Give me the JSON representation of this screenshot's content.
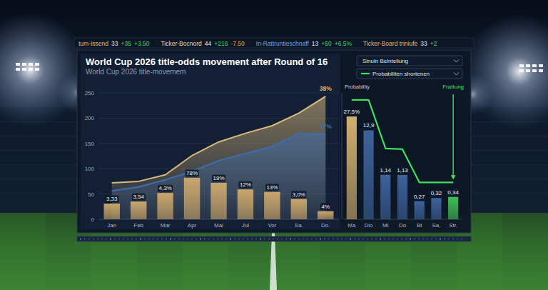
{
  "header": {
    "title": "World Cup 2026 title-odds movement after Round of 16",
    "subtitle": "World Cup 2026 title-movemem"
  },
  "ticker": [
    {
      "name": "tum-Issend",
      "value": "33",
      "change": "+35",
      "delta": "+3.50",
      "color": "#e9b67a"
    },
    {
      "name": "Ticker-Bocnord",
      "value": "44",
      "change": "+216",
      "delta": "-7.50",
      "color": "#f0d9b0"
    },
    {
      "name": "In-Rattruntieschnaff",
      "value": "13",
      "change": "+50",
      "delta": "+6.5%",
      "color": "#6fa4e6"
    },
    {
      "name": "Ticker-Board triniufe",
      "value": "33",
      "change": "+2",
      "delta": "",
      "color": "#e9b67a"
    }
  ],
  "chart_data": [
    {
      "type": "bar",
      "categories": [
        "Jan",
        "Feb",
        "Mar",
        "Apr",
        "Mai",
        "Jul",
        "Vor",
        "Sa.",
        "Do."
      ],
      "ylim": [
        0,
        250
      ],
      "yticks": [
        0,
        50,
        100,
        150,
        200,
        250
      ],
      "grid": true,
      "series": [
        {
          "type": "area",
          "color": "#d9b97c",
          "values": [
            72,
            75,
            88,
            126,
            153,
            170,
            185,
            210,
            243
          ],
          "end_label": "38%"
        },
        {
          "type": "area",
          "color": "#3d6eb0",
          "values": [
            56,
            64,
            78,
            95,
            116,
            130,
            144,
            170,
            168
          ],
          "end_label": "17%"
        },
        {
          "type": "bar",
          "color": "#c9a56a",
          "values": [
            31,
            35,
            52,
            82,
            72,
            59,
            54,
            40,
            16
          ],
          "point_labels": [
            "3,33",
            "3,54",
            "4,3%",
            "78%",
            "19%",
            "12%",
            "13%",
            "3,0%",
            "4%"
          ]
        }
      ]
    },
    {
      "type": "bar",
      "y_label": "Probability",
      "categories": [
        "Ma",
        "Dio",
        "Mi",
        "Do",
        "Bt",
        "Sa.",
        "Str."
      ],
      "log": "y",
      "ylim": [
        0.1,
        100
      ],
      "tick_labels": "x",
      "legend": "top-right",
      "data_labels": true,
      "series": [
        {
          "name": "Sinuln Beinteilung",
          "type": "bar",
          "colors": [
            "#d1b06f",
            "#3d639c",
            "#3d639c",
            "#3d639c",
            "#3d639c",
            "#3d639c",
            "#3fbf55"
          ],
          "values": [
            27.5,
            12.9,
            1.14,
            1.13,
            0.27,
            0.32,
            0.34
          ],
          "value_labels": [
            "27,5%",
            "12,9",
            "1,14",
            "1,13",
            "0,27",
            "0,32",
            "0,34"
          ]
        },
        {
          "name": "Probabiliten shortenen",
          "type": "line",
          "color": "#3fe05e",
          "values": [
            68,
            68,
            4.8,
            4.6,
            0.75,
            0.75,
            0.75
          ],
          "end_label": "Frattung"
        }
      ]
    }
  ]
}
